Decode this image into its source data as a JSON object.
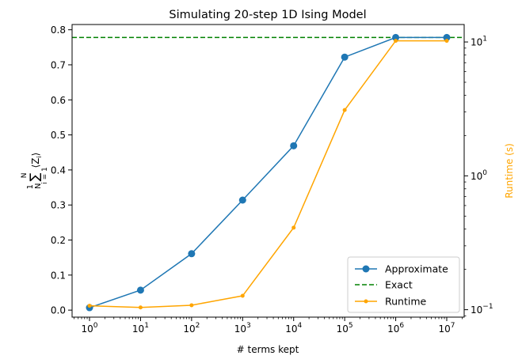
{
  "chart_data": {
    "type": "line",
    "title": "Simulating 20-step 1D Ising Model",
    "xlabel": "# terms kept",
    "ylabel": "\\frac{1}{N}\\sum_{i=1}^{N} \\langle Z_i \\rangle",
    "y2label": "Runtime (s)",
    "x_scale": "log",
    "y2_scale": "log",
    "x": [
      1,
      10,
      100,
      1000,
      10000,
      100000,
      1000000,
      10000000
    ],
    "xticks": [
      {
        "base": "10",
        "exp": "0"
      },
      {
        "base": "10",
        "exp": "1"
      },
      {
        "base": "10",
        "exp": "2"
      },
      {
        "base": "10",
        "exp": "3"
      },
      {
        "base": "10",
        "exp": "4"
      },
      {
        "base": "10",
        "exp": "5"
      },
      {
        "base": "10",
        "exp": "6"
      },
      {
        "base": "10",
        "exp": "7"
      }
    ],
    "yticks": [
      "0.0",
      "0.1",
      "0.2",
      "0.3",
      "0.4",
      "0.5",
      "0.6",
      "0.7",
      "0.8"
    ],
    "ylim": [
      -0.02,
      0.815
    ],
    "y2ticks": [
      {
        "base": "10",
        "exp": "−1",
        "value": 0.1
      },
      {
        "base": "10",
        "exp": "0",
        "value": 1
      },
      {
        "base": "10",
        "exp": "1",
        "value": 10
      }
    ],
    "y2lim": [
      0.088,
      13.5
    ],
    "series": [
      {
        "name": "Approximate",
        "axis": "left",
        "color": "#1f77b4",
        "marker": "circle-large",
        "values": [
          0.007,
          0.057,
          0.161,
          0.314,
          0.469,
          0.722,
          0.778,
          0.778
        ]
      },
      {
        "name": "Exact",
        "axis": "left",
        "color": "#008000",
        "style": "dashed",
        "constant": 0.778
      },
      {
        "name": "Runtime",
        "axis": "right",
        "color": "#ffa500",
        "marker": "circle-small",
        "values": [
          0.107,
          0.104,
          0.108,
          0.127,
          0.41,
          3.1,
          10.2,
          10.2
        ]
      }
    ],
    "legend": {
      "position": "lower-right",
      "entries": [
        "Approximate",
        "Exact",
        "Runtime"
      ]
    },
    "grid": false
  }
}
